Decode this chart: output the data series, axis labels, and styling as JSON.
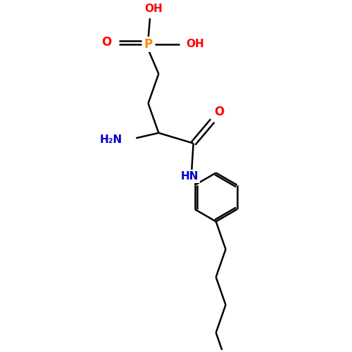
{
  "background_color": "#ffffff",
  "bond_color": "#000000",
  "bond_lw": 1.8,
  "atom_colors": {
    "O": "#ff0000",
    "N": "#0000cc",
    "P": "#ff8800",
    "C": "#000000"
  },
  "figsize": [
    5.0,
    5.0
  ],
  "dpi": 100,
  "xlim": [
    0,
    10
  ],
  "ylim": [
    0,
    10
  ],
  "font_size": 11
}
